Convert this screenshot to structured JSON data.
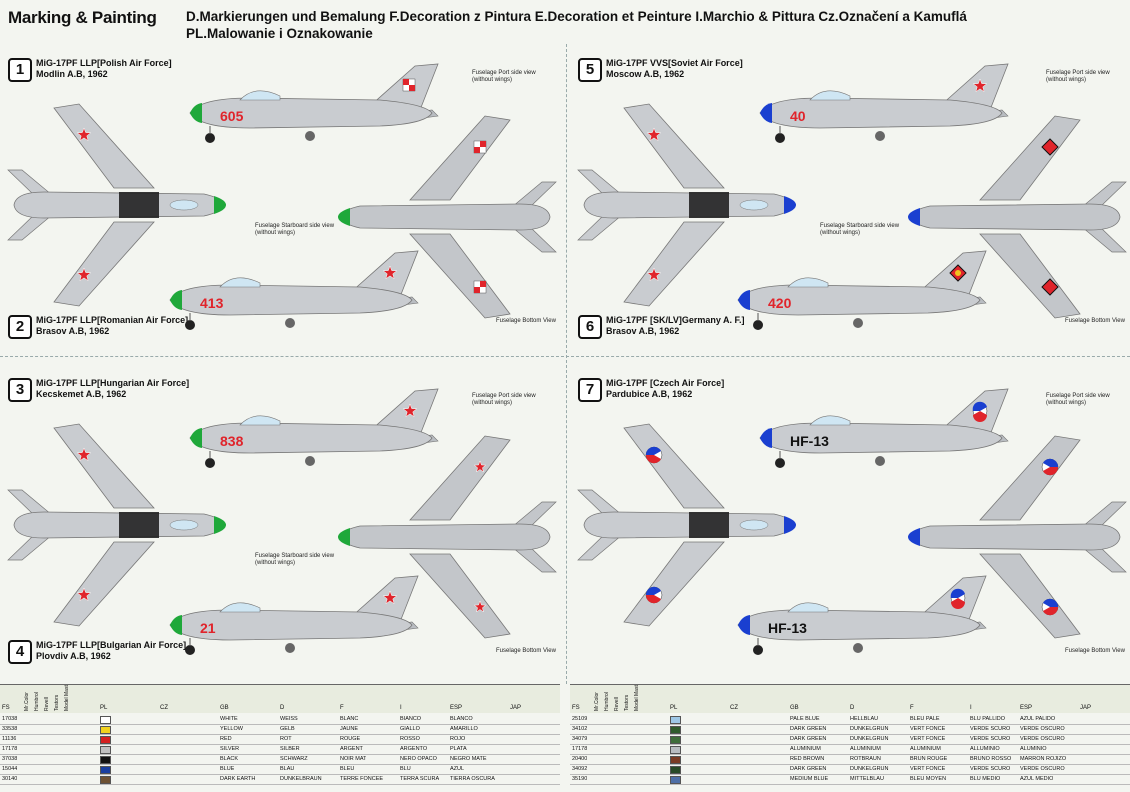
{
  "header": {
    "title": "Marking & Painting",
    "line1": "D.Markierungen und Bemalung F.Decoration z Pintura E.Decoration et Peinture I.Marchio & Pittura Cz.Označení a Kamuflá",
    "line2": "PL.Malowanie i Oznakowanie"
  },
  "variants": [
    {
      "num": "1",
      "a": "MiG-17PF LLP[Polish Air Force]",
      "b": "Modlin A.B, 1962",
      "code": "605",
      "nose": "#1fa83a"
    },
    {
      "num": "2",
      "a": "MiG-17PF LLP[Romanian Air Force]",
      "b": "Brasov A.B, 1962",
      "code": "413",
      "nose": "#1fa83a"
    },
    {
      "num": "3",
      "a": "MiG-17PF LLP[Hungarian Air Force]",
      "b": "Kecskemet A.B, 1962",
      "code": "838",
      "nose": "#1fa83a"
    },
    {
      "num": "4",
      "a": "MiG-17PF LLP[Bulgarian Air Force]",
      "b": "Plovdiv A.B, 1962",
      "code": "21",
      "nose": "#1fa83a"
    },
    {
      "num": "5",
      "a": "MiG-17PF VVS[Soviet Air Force]",
      "b": "Moscow A.B, 1962",
      "code": "40",
      "nose": "#1a3fd0"
    },
    {
      "num": "6",
      "a": "MiG-17PF [SK/LV]Germany A. F.]",
      "b": "Brasov A.B, 1962",
      "code": "420",
      "nose": "#1a3fd0"
    },
    {
      "num": "7",
      "a": "MiG-17PF [Czech Air Force]",
      "b": "Pardubice A.B, 1962",
      "code": "HF-13",
      "nose": "#1a3fd0"
    }
  ],
  "views": {
    "port": "Fuselage Port side view",
    "port_sub": "(without wings)",
    "starboard": "Fuselage Starboard side view",
    "starboard_sub": "(without wings)",
    "bottom": "Fuselage Bottom View"
  },
  "colors": {
    "silver": "#c9ccd0",
    "red": "#e0242b",
    "green": "#1fa83a",
    "blue": "#1a3fd0",
    "black": "#222222"
  },
  "table": {
    "headers": [
      "FS",
      "Mr.Color",
      "Humbrol",
      "Revell",
      "Testors",
      "Model Master",
      "PL",
      "CZ",
      "GB",
      "D",
      "F",
      "I",
      "ESP",
      "JAP"
    ],
    "rows_left": [
      {
        "fs": "17038",
        "gb": "WHITE",
        "d": "WEISS",
        "f": "BLANC",
        "i": "BIANCO",
        "esp": "BLANCO",
        "color": "#ffffff"
      },
      {
        "fs": "33538",
        "gb": "YELLOW",
        "d": "GELB",
        "f": "JAUNE",
        "i": "GIALLO",
        "esp": "AMARILLO",
        "color": "#f2d21e"
      },
      {
        "fs": "11136",
        "gb": "RED",
        "d": "ROT",
        "f": "ROUGE",
        "i": "ROSSO",
        "esp": "ROJO",
        "color": "#d52020"
      },
      {
        "fs": "17178",
        "gb": "SILVER",
        "d": "SILBER",
        "f": "ARGENT",
        "i": "ARGENTO",
        "esp": "PLATA",
        "color": "#c0c0c0"
      },
      {
        "fs": "37038",
        "gb": "BLACK",
        "d": "SCHWARZ",
        "f": "NOIR MAT",
        "i": "NERO OPACO",
        "esp": "NEGRO MATE",
        "color": "#111111"
      },
      {
        "fs": "15044",
        "gb": "BLUE",
        "d": "BLAU",
        "f": "BLEU",
        "i": "BLU",
        "esp": "AZUL",
        "color": "#1a3f9f"
      },
      {
        "fs": "30140",
        "gb": "DARK EARTH",
        "d": "DUNKELBRAUN",
        "f": "TERRE FONCEE",
        "i": "TERRA SCURA",
        "esp": "TIERRA OSCURA",
        "color": "#6e5233"
      }
    ],
    "rows_right": [
      {
        "fs": "25109",
        "gb": "PALE BLUE",
        "d": "HELLBLAU",
        "f": "BLEU PALE",
        "i": "BLU PALLIDO",
        "esp": "AZUL PALIDO",
        "color": "#9ec7e6"
      },
      {
        "fs": "34102",
        "gb": "DARK GREEN",
        "d": "DUNKELGRUN",
        "f": "VERT FONCE",
        "i": "VERDE SCURO",
        "esp": "VERDE OSCURO",
        "color": "#2f5b2c"
      },
      {
        "fs": "34079",
        "gb": "DARK GREEN",
        "d": "DUNKELGRUN",
        "f": "VERT FONCE",
        "i": "VERDE SCURO",
        "esp": "VERDE OSCURO",
        "color": "#3f6d3a"
      },
      {
        "fs": "17178",
        "gb": "ALUMINIUM",
        "d": "ALUMINIUM",
        "f": "ALUMINIUM",
        "i": "ALLUMINIO",
        "esp": "ALUMINIO",
        "color": "#b8bcc0"
      },
      {
        "fs": "20400",
        "gb": "RED BROWN",
        "d": "ROTBRAUN",
        "f": "BRUN ROUGE",
        "i": "BRUNO ROSSO",
        "esp": "MARRON ROJIZO",
        "color": "#7a3b24"
      },
      {
        "fs": "34092",
        "gb": "DARK GREEN",
        "d": "DUNKELGRUN",
        "f": "VERT FONCE",
        "i": "VERDE SCURO",
        "esp": "VERDE OSCURO",
        "color": "#284a26"
      },
      {
        "fs": "35190",
        "gb": "MEDIUM BLUE",
        "d": "MITTELBLAU",
        "f": "BLEU MOYEN",
        "i": "BLU MEDIO",
        "esp": "AZUL MEDIO",
        "color": "#4e6fa6"
      }
    ]
  }
}
